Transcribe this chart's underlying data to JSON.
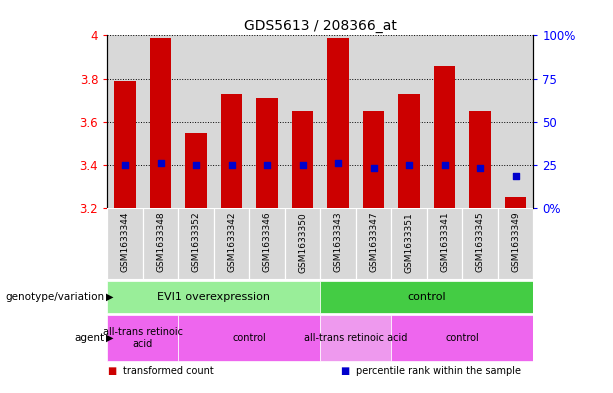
{
  "title": "GDS5613 / 208366_at",
  "samples": [
    "GSM1633344",
    "GSM1633348",
    "GSM1633352",
    "GSM1633342",
    "GSM1633346",
    "GSM1633350",
    "GSM1633343",
    "GSM1633347",
    "GSM1633351",
    "GSM1633341",
    "GSM1633345",
    "GSM1633349"
  ],
  "bar_bottoms": [
    3.2,
    3.2,
    3.2,
    3.2,
    3.2,
    3.2,
    3.2,
    3.2,
    3.2,
    3.2,
    3.2,
    3.2
  ],
  "bar_tops": [
    3.79,
    3.99,
    3.55,
    3.73,
    3.71,
    3.65,
    3.99,
    3.65,
    3.73,
    3.86,
    3.65,
    3.25
  ],
  "percentile_values": [
    3.4,
    3.41,
    3.4,
    3.4,
    3.4,
    3.4,
    3.41,
    3.385,
    3.4,
    3.4,
    3.385,
    3.35
  ],
  "ylim_left": [
    3.2,
    4.0
  ],
  "ylim_right": [
    0,
    100
  ],
  "yticks_left": [
    3.2,
    3.4,
    3.6,
    3.8,
    4.0
  ],
  "ytick_labels_left": [
    "3.2",
    "3.4",
    "3.6",
    "3.8",
    "4"
  ],
  "yticks_right": [
    0,
    25,
    50,
    75,
    100
  ],
  "ytick_labels_right": [
    "0%",
    "25",
    "50",
    "75",
    "100%"
  ],
  "bar_color": "#cc0000",
  "dot_color": "#0000cc",
  "col_bg_color": "#d8d8d8",
  "genotype_groups": [
    {
      "text": "EVI1 overexpression",
      "start": 0,
      "end": 5,
      "color": "#99ee99"
    },
    {
      "text": "control",
      "start": 6,
      "end": 11,
      "color": "#44cc44"
    }
  ],
  "agent_groups": [
    {
      "text": "all-trans retinoic\nacid",
      "start": 0,
      "end": 1,
      "color": "#ee66ee"
    },
    {
      "text": "control",
      "start": 2,
      "end": 5,
      "color": "#ee66ee"
    },
    {
      "text": "all-trans retinoic acid",
      "start": 6,
      "end": 7,
      "color": "#ee99ee"
    },
    {
      "text": "control",
      "start": 8,
      "end": 11,
      "color": "#ee66ee"
    }
  ],
  "legend_items": [
    {
      "color": "#cc0000",
      "label": "transformed count"
    },
    {
      "color": "#0000cc",
      "label": "percentile rank within the sample"
    }
  ],
  "genotype_label": "genotype/variation",
  "agent_label": "agent"
}
